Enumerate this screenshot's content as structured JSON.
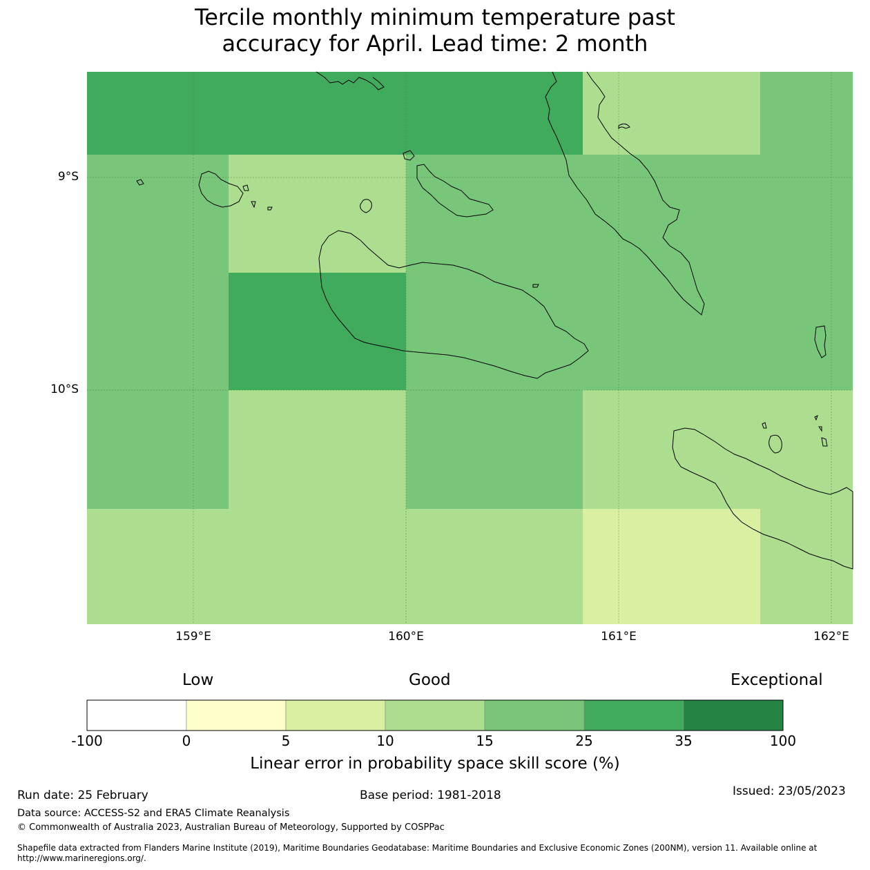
{
  "title_line1": "Tercile monthly minimum temperature past",
  "title_line2": "accuracy for April. Lead time: 2 month",
  "map": {
    "lat_labels": [
      "9°S",
      "10°S"
    ],
    "lon_labels": [
      "159°E",
      "160°E",
      "161°E",
      "162°E"
    ],
    "cell_colors": {
      "c0_5": "#ffffff",
      "c0_5b": "#ffffcc",
      "c5_10": "#d9f0a3",
      "c10_15": "#addd8e",
      "c15_25": "#78c679",
      "c25_35": "#41ab5d",
      "c35_100": "#238443"
    },
    "grid_rows": [
      [
        "c25_35",
        "c25_35",
        "c25_35",
        "c10_15",
        "c15_25"
      ],
      [
        "c15_25",
        "c10_15",
        "c15_25",
        "c15_25",
        "c15_25"
      ],
      [
        "c15_25",
        "c25_35",
        "c15_25",
        "c15_25",
        "c15_25"
      ],
      [
        "c15_25",
        "c10_15",
        "c15_25",
        "c10_15",
        "c10_15"
      ],
      [
        "c10_15",
        "c10_15",
        "c10_15",
        "c5_10",
        "c10_15"
      ]
    ]
  },
  "colorbar": {
    "words": {
      "low": "Low",
      "good": "Good",
      "exceptional": "Exceptional"
    },
    "ticks": [
      "-100",
      "0",
      "5",
      "10",
      "15",
      "25",
      "35",
      "100"
    ],
    "colors": [
      "#ffffff",
      "#ffffcc",
      "#d9f0a3",
      "#addd8e",
      "#78c679",
      "#41ab5d",
      "#238443"
    ],
    "title": "Linear error in probability space skill score (%)"
  },
  "footer": {
    "run_date": "Run date: 25 February",
    "base_period": "Base period: 1981-2018",
    "issued": "Issued: 23/05/2023",
    "data_source": "Data source: ACCESS-S2 and ERA5 Climate Reanalysis",
    "copyright": "© Commonwealth of Australia 2023, Australian Bureau of Meteorology, Supported by COSPPac",
    "shapefile_line1": "Shapefile data extracted from Flanders Marine Institute (2019), Maritime Boundaries Geodatabase: Maritime Boundaries and Exclusive Economic Zones (200NM), version 11. Available online at",
    "shapefile_line2": "http://www.marineregions.org/."
  }
}
